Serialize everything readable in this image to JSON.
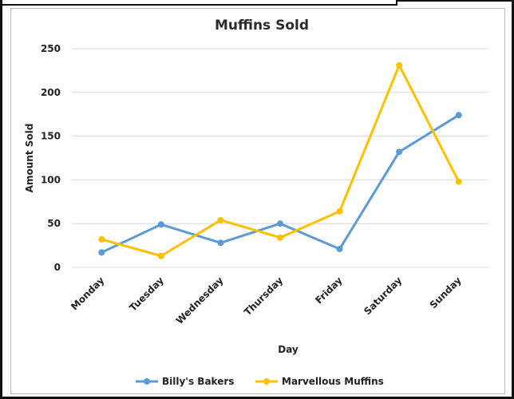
{
  "chart_data": {
    "type": "line",
    "title": "Muffins Sold",
    "xlabel": "Day",
    "ylabel": "Amount Sold",
    "categories": [
      "Monday",
      "Tuesday",
      "Wednesday",
      "Thursday",
      "Friday",
      "Saturday",
      "Sunday"
    ],
    "ylim": [
      0,
      250
    ],
    "yticks": [
      "0",
      "50",
      "100",
      "150",
      "200",
      "250"
    ],
    "grid": true,
    "legend_position": "bottom",
    "series": [
      {
        "name": "Billy's Bakers",
        "color": "#5b9bd5",
        "values": [
          17,
          49,
          28,
          50,
          21,
          132,
          174
        ]
      },
      {
        "name": "Marvellous Muffins",
        "color": "#ffc000",
        "values": [
          32,
          13,
          54,
          34,
          64,
          231,
          98
        ]
      }
    ]
  }
}
